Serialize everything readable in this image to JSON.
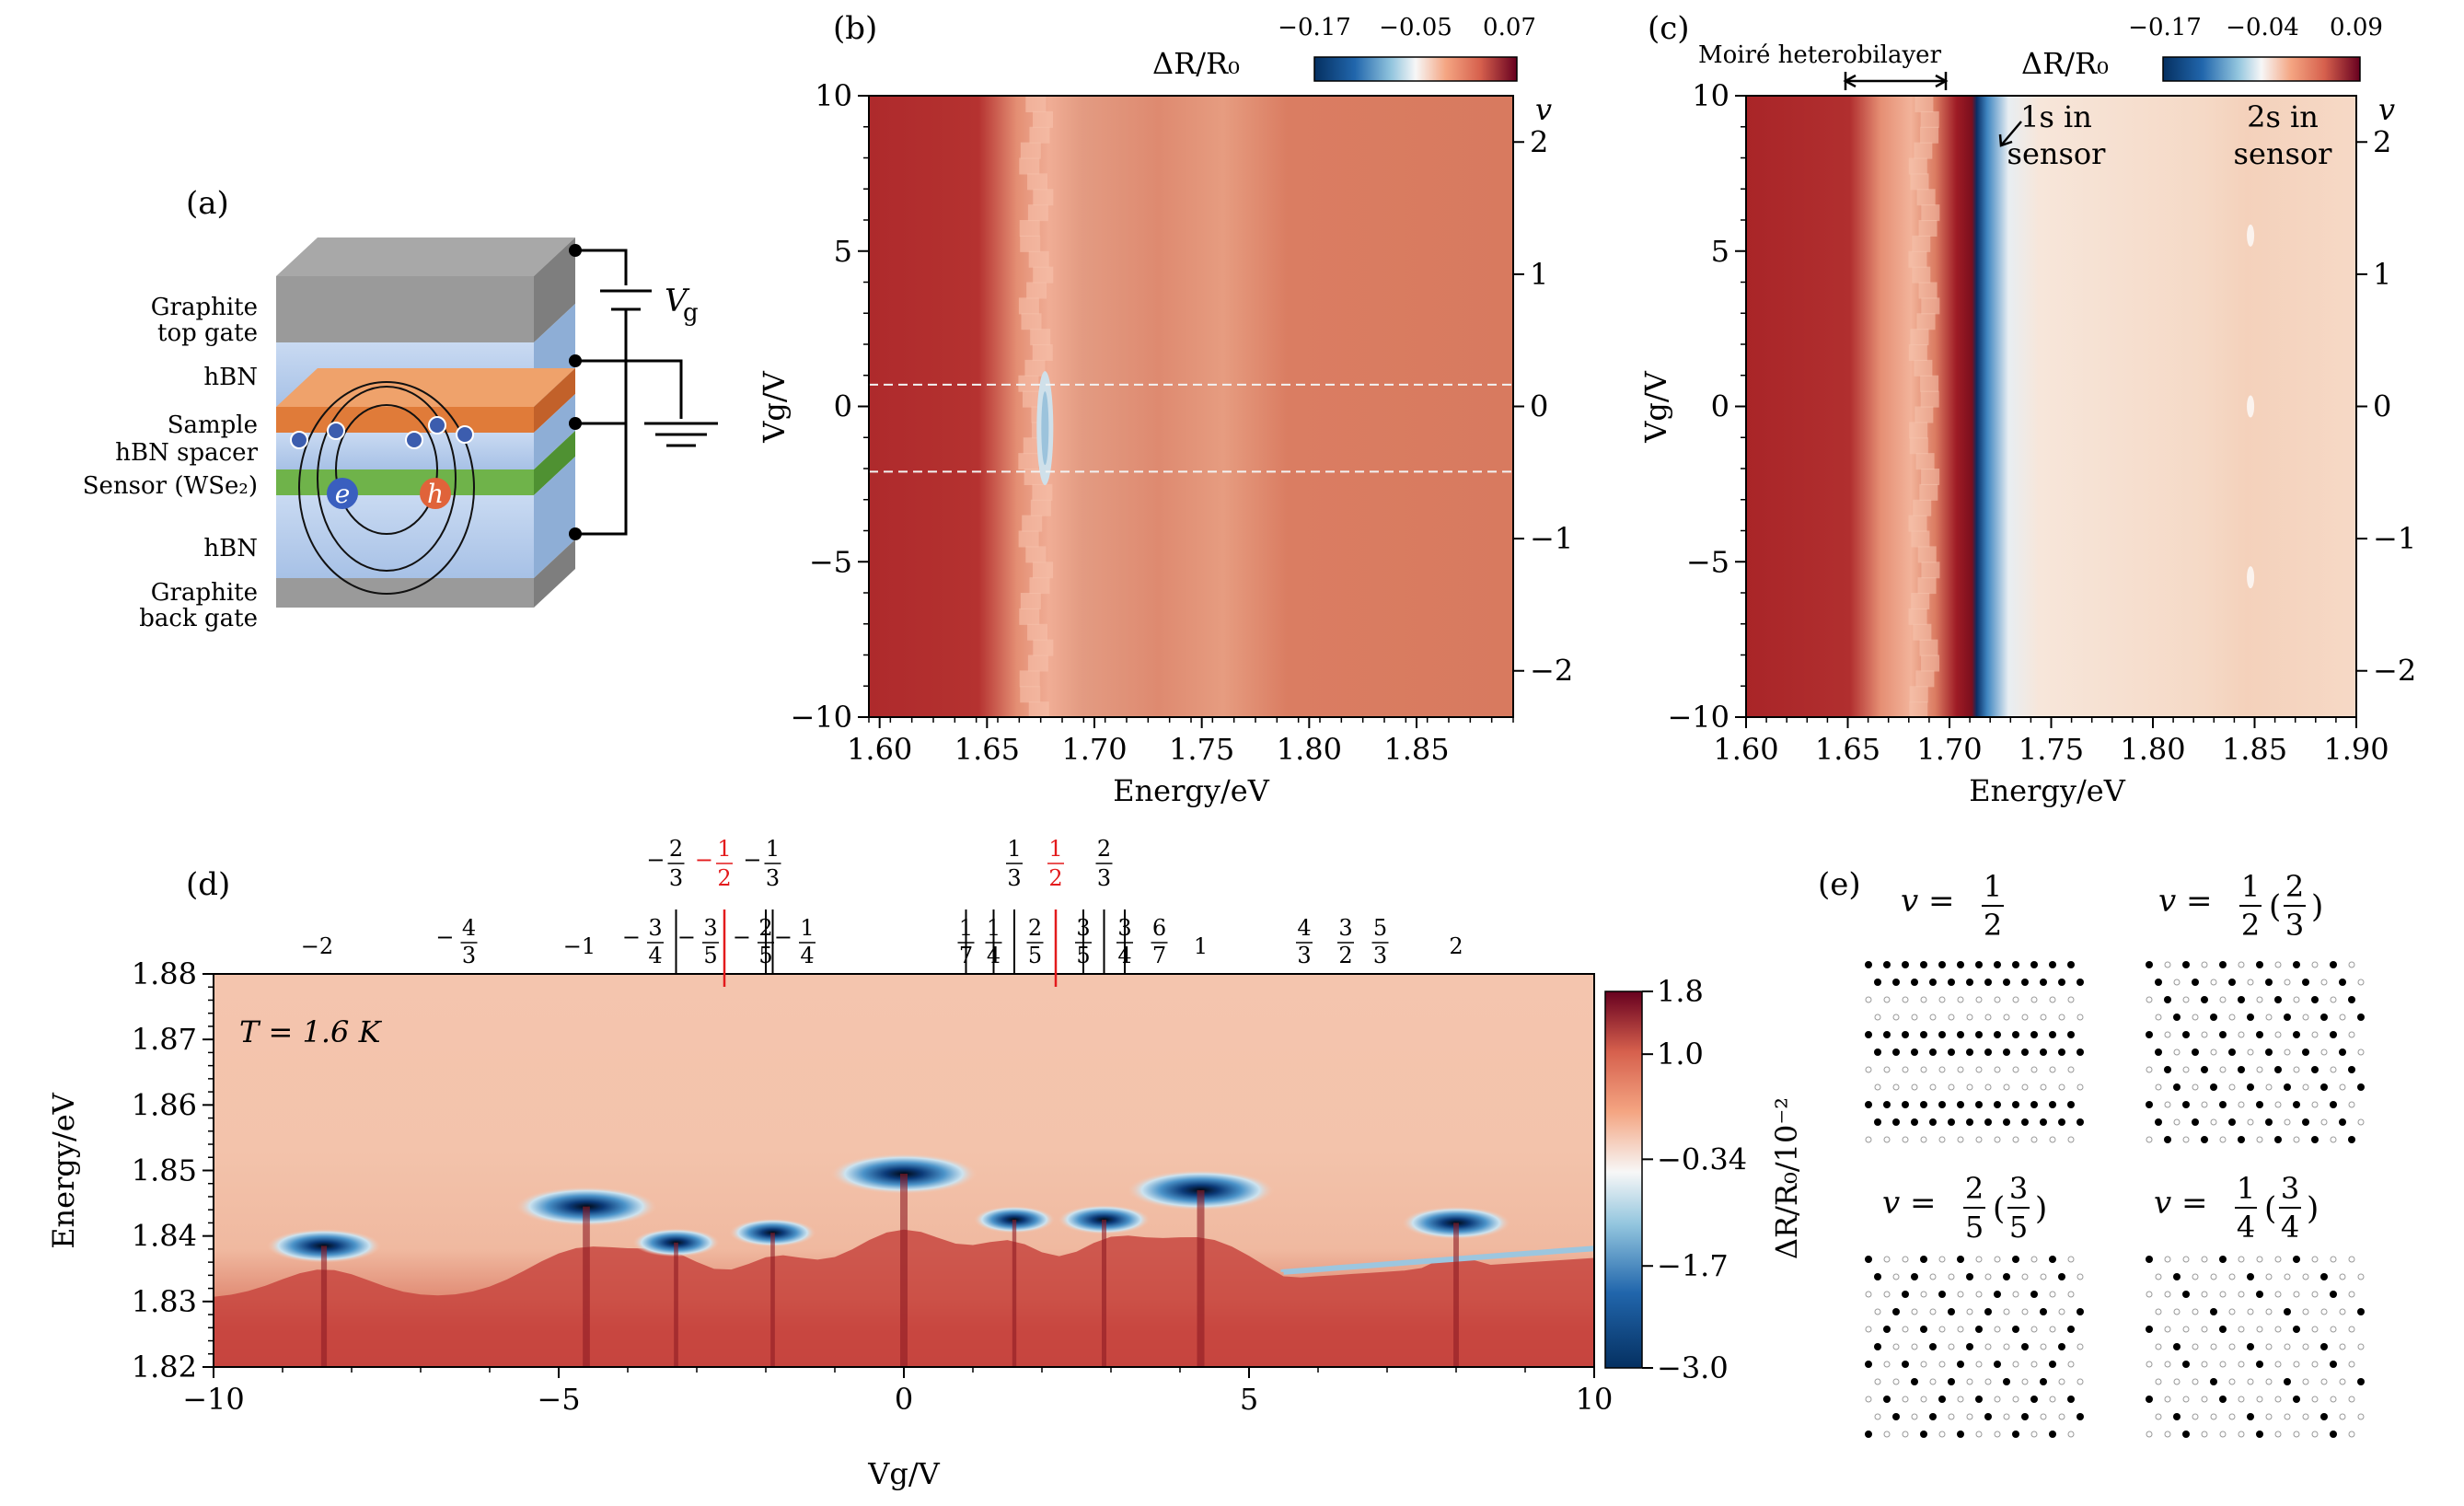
{
  "panel_labels": {
    "a": "(a)",
    "b": "(b)",
    "c": "(c)",
    "d": "(d)",
    "e": "(e)"
  },
  "colors": {
    "red_dark": "#b2182b",
    "red_mid": "#d6604d",
    "red_light": "#f4a582",
    "white": "#f7f7f7",
    "blue_light": "#92c5de",
    "blue_dark": "#2166ac",
    "navy": "#053061",
    "fraction_red": "#e31a1c"
  },
  "schematic": {
    "layers": [
      "Graphite",
      "top gate",
      "hBN",
      "Sample",
      "hBN spacer",
      "Sensor (WSe₂)",
      "hBN",
      "Graphite",
      "back gate"
    ],
    "voltage_label": "V",
    "voltage_sub": "g",
    "electron": "e",
    "hole": "h"
  },
  "chart_data": [
    {
      "id": "b",
      "type": "heatmap",
      "title": "",
      "colorbar_label": "ΔR/R₀",
      "colorbar_ticks": [
        "−0.17",
        "−0.05",
        "0.07"
      ],
      "xlabel": "Energy/eV",
      "ylabel": "Vg/V",
      "xlim": [
        1.595,
        1.895
      ],
      "ylim": [
        -10,
        10
      ],
      "x_ticks": [
        1.6,
        1.65,
        1.7,
        1.75,
        1.8,
        1.85
      ],
      "x_tick_labels": [
        "1.60",
        "1.65",
        "1.70",
        "1.75",
        "1.80",
        "1.85"
      ],
      "y_ticks": [
        -10,
        -5,
        0,
        5,
        10
      ],
      "y_tick_labels": [
        "−10",
        "−5",
        "0",
        "5",
        "10"
      ],
      "right_axis_label": "v",
      "right_ticks": [
        -2,
        -1,
        0,
        1,
        2
      ],
      "right_tick_labels": [
        "−2",
        "−1",
        "0",
        "1",
        "2"
      ],
      "dashed_lines_vg": [
        0.7,
        -2.1
      ]
    },
    {
      "id": "c",
      "type": "heatmap",
      "title": "",
      "colorbar_label": "ΔR/R₀",
      "colorbar_ticks": [
        "−0.17",
        "−0.04",
        "0.09"
      ],
      "xlabel": "Energy/eV",
      "ylabel": "Vg/V",
      "xlim": [
        1.6,
        1.9
      ],
      "ylim": [
        -10,
        10
      ],
      "x_ticks": [
        1.6,
        1.65,
        1.7,
        1.75,
        1.8,
        1.85,
        1.9
      ],
      "x_tick_labels": [
        "1.60",
        "1.65",
        "1.70",
        "1.75",
        "1.80",
        "1.85",
        "1.90"
      ],
      "y_ticks": [
        -10,
        -5,
        0,
        5,
        10
      ],
      "y_tick_labels": [
        "−10",
        "−5",
        "0",
        "5",
        "10"
      ],
      "right_axis_label": "v",
      "right_ticks": [
        -2,
        -1,
        0,
        1,
        2
      ],
      "right_tick_labels": [
        "−2",
        "−1",
        "0",
        "1",
        "2"
      ],
      "annotations": [
        "Moiré heterobilayer",
        "1s in",
        "sensor",
        "2s in",
        "sensor"
      ]
    },
    {
      "id": "d",
      "type": "heatmap",
      "title": "",
      "annotation": "T = 1.6 K",
      "xlabel": "Vg/V",
      "ylabel": "Energy/eV",
      "xlim": [
        -10,
        10
      ],
      "ylim": [
        1.82,
        1.88
      ],
      "x_ticks": [
        -10,
        -5,
        0,
        5,
        10
      ],
      "x_tick_labels": [
        "−10",
        "−5",
        "0",
        "5",
        "10"
      ],
      "y_ticks": [
        1.82,
        1.83,
        1.84,
        1.85,
        1.86,
        1.87,
        1.88
      ],
      "y_tick_labels": [
        "1.82",
        "1.83",
        "1.84",
        "1.85",
        "1.86",
        "1.87",
        "1.88"
      ],
      "colorbar_label": "ΔR/R₀/10⁻²",
      "colorbar_ticks": [
        "1.8",
        "1.0",
        "−0.34",
        "−1.7",
        "−3.0"
      ],
      "colorbar_values": [
        1.8,
        1.0,
        -0.34,
        -1.7,
        -3.0
      ],
      "dips": [
        {
          "vg": -8.4,
          "e": 1.8385,
          "strength": 0.7
        },
        {
          "vg": -4.6,
          "e": 1.8445,
          "strength": 0.95
        },
        {
          "vg": -3.3,
          "e": 1.839,
          "strength": 0.45
        },
        {
          "vg": -1.9,
          "e": 1.8405,
          "strength": 0.45
        },
        {
          "vg": 0.0,
          "e": 1.8495,
          "strength": 1.0
        },
        {
          "vg": 1.6,
          "e": 1.8425,
          "strength": 0.4
        },
        {
          "vg": 2.9,
          "e": 1.8425,
          "strength": 0.5
        },
        {
          "vg": 4.3,
          "e": 1.847,
          "strength": 1.0
        },
        {
          "vg": 8.0,
          "e": 1.842,
          "strength": 0.65
        }
      ],
      "top_fractions": [
        {
          "vg": -8.5,
          "num": "",
          "den": "",
          "text": "−2"
        },
        {
          "vg": -6.3,
          "num": "4",
          "den": "3",
          "sign": "−"
        },
        {
          "vg": -4.7,
          "num": "",
          "den": "",
          "text": "−1"
        },
        {
          "vg": -3.6,
          "num": "3",
          "den": "4",
          "sign": "−"
        },
        {
          "vg": -2.8,
          "num": "3",
          "den": "5",
          "sign": "−"
        },
        {
          "vg": -2.0,
          "num": "2",
          "den": "5",
          "sign": "−"
        },
        {
          "vg": -1.4,
          "num": "1",
          "den": "4",
          "sign": "−"
        },
        {
          "vg": 0.9,
          "num": "1",
          "den": "7",
          "sign": ""
        },
        {
          "vg": 1.3,
          "num": "1",
          "den": "4",
          "sign": ""
        },
        {
          "vg": 1.9,
          "num": "2",
          "den": "5",
          "sign": ""
        },
        {
          "vg": 2.6,
          "num": "3",
          "den": "5",
          "sign": ""
        },
        {
          "vg": 3.2,
          "num": "3",
          "den": "4",
          "sign": ""
        },
        {
          "vg": 3.7,
          "num": "6",
          "den": "7",
          "sign": ""
        },
        {
          "vg": 4.3,
          "num": "",
          "den": "",
          "text": "1"
        },
        {
          "vg": 5.8,
          "num": "4",
          "den": "3",
          "sign": ""
        },
        {
          "vg": 6.4,
          "num": "3",
          "den": "2",
          "sign": ""
        },
        {
          "vg": 6.9,
          "num": "5",
          "den": "3",
          "sign": ""
        },
        {
          "vg": 8.0,
          "num": "",
          "den": "",
          "text": "2"
        }
      ],
      "top_lines_black": [
        -3.3,
        -2.0,
        0.9,
        1.3,
        2.6,
        3.2,
        -1.9,
        1.6,
        2.9
      ],
      "top_lines_red": [
        -2.6,
        2.2
      ],
      "upper_fractions": [
        {
          "vg": -3.3,
          "num": "2",
          "den": "3",
          "sign": "−",
          "color": "black"
        },
        {
          "vg": -2.6,
          "num": "1",
          "den": "2",
          "sign": "−",
          "color": "red"
        },
        {
          "vg": -1.9,
          "num": "1",
          "den": "3",
          "sign": "−",
          "color": "black"
        },
        {
          "vg": 1.6,
          "num": "1",
          "den": "3",
          "sign": "",
          "color": "black"
        },
        {
          "vg": 2.2,
          "num": "1",
          "den": "2",
          "sign": "",
          "color": "red"
        },
        {
          "vg": 2.9,
          "num": "2",
          "den": "3",
          "sign": "",
          "color": "black"
        }
      ]
    }
  ],
  "panel_e": {
    "titles": [
      {
        "prefix": "v =",
        "num": "1",
        "den": "2",
        "paren": ""
      },
      {
        "prefix": "v =",
        "num": "1",
        "den": "2",
        "paren_num": "2",
        "paren_den": "3"
      },
      {
        "prefix": "v =",
        "num": "2",
        "den": "5",
        "paren_num": "3",
        "paren_den": "5"
      },
      {
        "prefix": "v =",
        "num": "1",
        "den": "4",
        "paren_num": "3",
        "paren_den": "4"
      }
    ],
    "fill_fractions": [
      0.5,
      0.5,
      0.4,
      0.25
    ]
  }
}
